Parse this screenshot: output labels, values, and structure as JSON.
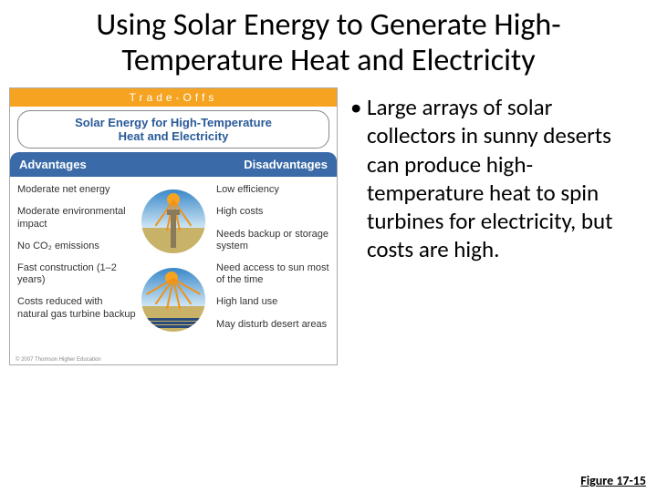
{
  "title": "Using Solar Energy to Generate High-Temperature Heat and Electricity",
  "bullet": "Large arrays of solar collectors in sunny deserts can produce high-temperature heat to spin turbines for electricity, but costs are high.",
  "figure_number": "Figure 17-15",
  "tradeoffs": {
    "header_label": "Trade-Offs",
    "pill_line1": "Solar Energy for High-Temperature",
    "pill_line2": "Heat and Electricity",
    "tab_left": "Advantages",
    "tab_right": "Disadvantages",
    "header_bg": "#f5a321",
    "tab_bg": "#3a6aa8",
    "pill_text_color": "#2a5a98",
    "sky_top": "#3a88c8",
    "sky_bottom": "#cfe6f5",
    "ground_color": "#c8b268",
    "sun_color": "#f5a321",
    "ray_color": "#f0931a",
    "panel_color": "#2a4a7a",
    "advantages": [
      "Moderate net energy",
      "Moderate environmental impact",
      "No CO₂ emissions",
      "Fast construction (1–2 years)",
      "Costs reduced with natural gas turbine backup"
    ],
    "disadvantages": [
      "Low efficiency",
      "High costs",
      "Needs backup or storage system",
      "Need access to sun most of the time",
      "High land use",
      "May disturb desert areas"
    ],
    "copyright": "© 2007 Thomson Higher Education"
  }
}
